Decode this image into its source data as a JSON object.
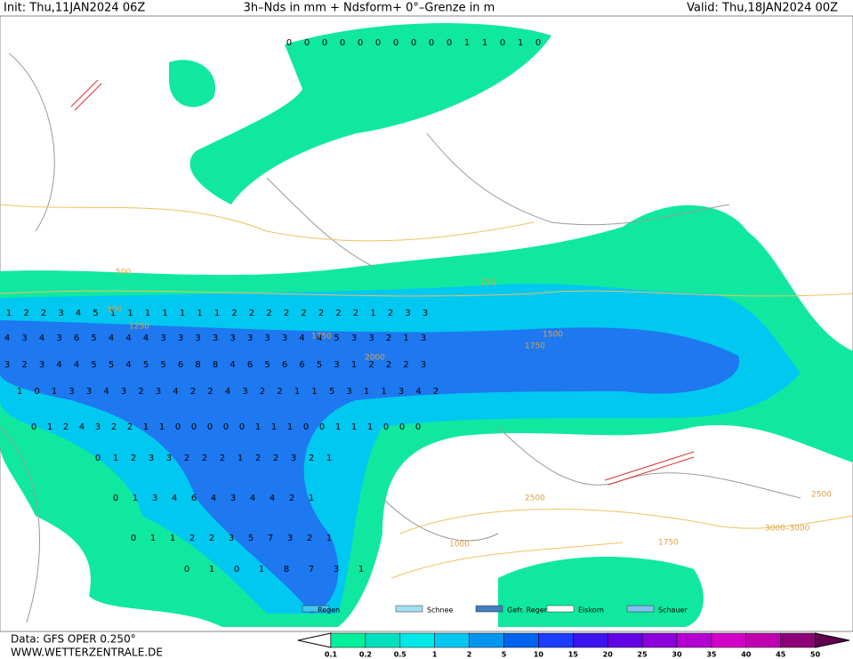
{
  "header": {
    "init": "Init: Thu,11JAN2024 06Z",
    "title": "3h–Nds in mm + Ndsform+ 0°–Grenze in m",
    "valid": "Valid: Thu,18JAN2024 00Z"
  },
  "legend": [
    "Regen",
    "Schnee",
    "Gefr. Regen",
    "Eiskorn",
    "Schauer"
  ],
  "scale": [
    "0.1",
    "0.2",
    "0.5",
    "1",
    "2",
    "5",
    "10",
    "15",
    "20",
    "25",
    "30",
    "35",
    "40",
    "45",
    "50"
  ],
  "footer": {
    "data": "Data: GFS OPER 0.250°",
    "site": "WWW.WETTERZENTRALE.DE"
  },
  "contour_labels": [
    "500",
    "1250",
    "1750",
    "2000",
    "1500",
    "1750",
    "2500",
    "3000–3000",
    "1000",
    "750",
    "500",
    "2500",
    "1750"
  ],
  "digit_rows": [
    [
      "0",
      "0",
      "0",
      "0",
      "0",
      "0",
      "0",
      "0",
      "0",
      "0",
      "1",
      "1",
      "0",
      "1",
      "0"
    ],
    [
      "1",
      "2",
      "2",
      "3",
      "4",
      "5",
      "1",
      "1",
      "1",
      "1",
      "1",
      "1",
      "1",
      "2",
      "2",
      "2",
      "2",
      "2",
      "2",
      "2",
      "2",
      "1",
      "2",
      "3",
      "3"
    ],
    [
      "4",
      "3",
      "4",
      "3",
      "6",
      "5",
      "4",
      "4",
      "4",
      "3",
      "3",
      "3",
      "3",
      "3",
      "3",
      "3",
      "3",
      "4",
      "4",
      "5",
      "3",
      "3",
      "2",
      "1",
      "3"
    ],
    [
      "3",
      "2",
      "3",
      "4",
      "4",
      "5",
      "5",
      "4",
      "5",
      "5",
      "6",
      "8",
      "8",
      "4",
      "6",
      "5",
      "6",
      "6",
      "5",
      "3",
      "1",
      "2",
      "2",
      "2",
      "3"
    ],
    [
      "1",
      "0",
      "1",
      "3",
      "3",
      "4",
      "3",
      "2",
      "3",
      "4",
      "2",
      "2",
      "4",
      "3",
      "2",
      "2",
      "1",
      "1",
      "5",
      "3",
      "1",
      "1",
      "3",
      "4",
      "2"
    ],
    [
      "0",
      "1",
      "2",
      "4",
      "3",
      "2",
      "2",
      "1",
      "1",
      "0",
      "0",
      "0",
      "0",
      "0",
      "1",
      "1",
      "1",
      "0",
      "0",
      "1",
      "1",
      "1",
      "0",
      "0",
      "0"
    ],
    [
      "0",
      "1",
      "2",
      "3",
      "3",
      "2",
      "2",
      "2",
      "1",
      "2",
      "2",
      "3",
      "2",
      "1"
    ],
    [
      "0",
      "1",
      "3",
      "4",
      "6",
      "4",
      "3",
      "4",
      "4",
      "2",
      "1"
    ],
    [
      "0",
      "1",
      "1",
      "2",
      "2",
      "3",
      "5",
      "7",
      "3",
      "2",
      "1"
    ],
    [
      "0",
      "1",
      "0",
      "1",
      "8",
      "7",
      "3",
      "1"
    ]
  ]
}
